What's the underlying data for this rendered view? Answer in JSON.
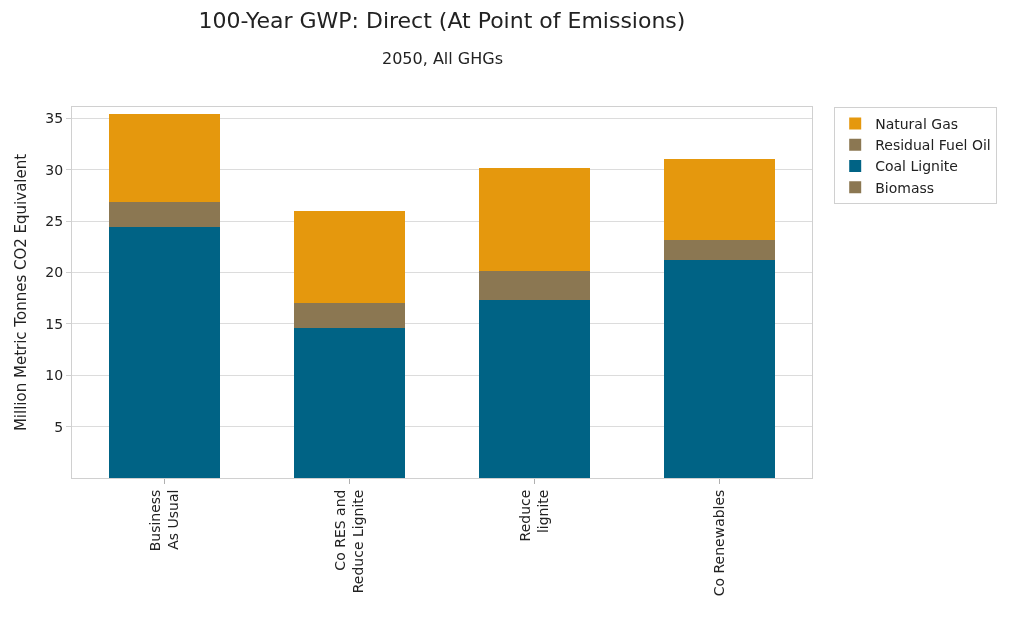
{
  "chart_data": {
    "type": "bar",
    "title": "100-Year GWP: Direct (At Point of Emissions)",
    "subtitle": "2050, All GHGs",
    "ylabel": "Million Metric Tonnes CO2 Equivalent",
    "categories": [
      "Business\nAs Usual",
      "Co RES and\nReduce Lignite",
      "Reduce\nlignite",
      "Co Renewables"
    ],
    "stacked": true,
    "series": [
      {
        "name": "Biomass",
        "color": "#8b7752",
        "values": [
          0,
          0,
          0,
          0
        ]
      },
      {
        "name": "Coal Lignite",
        "color": "#006385",
        "values": [
          24.4,
          14.6,
          17.3,
          21.2
        ]
      },
      {
        "name": "Residual Fuel Oil",
        "color": "#8b7752",
        "values": [
          2.5,
          2.4,
          2.8,
          2.0
        ]
      },
      {
        "name": "Natural Gas",
        "color": "#e5980d",
        "values": [
          8.5,
          9.0,
          10.1,
          7.8
        ]
      }
    ],
    "ylim": [
      0,
      36.1
    ],
    "yticks": [
      5,
      10,
      15,
      20,
      25,
      30,
      35
    ],
    "grid": "y",
    "legend": "top right"
  }
}
